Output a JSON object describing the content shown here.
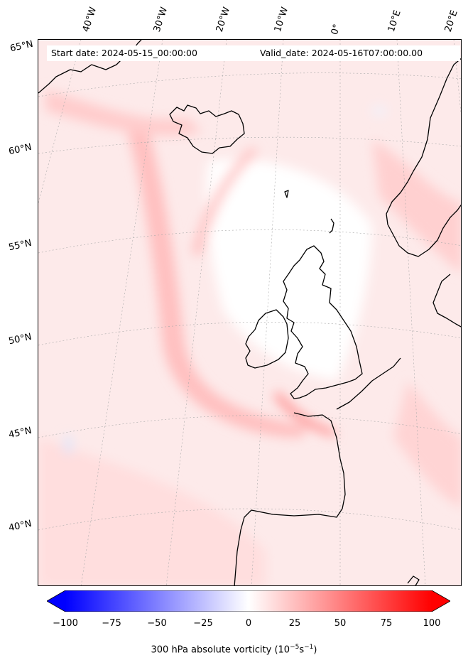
{
  "header": {
    "start_date": "Start date: 2024-05-15_00:00:00",
    "valid_date": "Valid_date: 2024-05-16T07:00:00.00"
  },
  "lon_labels": [
    "40°W",
    "30°W",
    "20°W",
    "10°W",
    "0°",
    "10°E",
    "20°E"
  ],
  "lat_labels": [
    "65°N",
    "60°N",
    "55°N",
    "50°N",
    "45°N",
    "40°N"
  ],
  "colorbar": {
    "ticks": [
      "−100",
      "−75",
      "−50",
      "−25",
      "0",
      "25",
      "50",
      "75",
      "100"
    ],
    "label": "300 hPa absolute vorticity (10",
    "label_exp": "−5",
    "label_unit": "s",
    "label_exp2": "−1",
    "label_close": ")",
    "min_color": "#0000ff",
    "mid_color": "#ffffff",
    "max_color": "#ff0000",
    "range": [
      -100,
      100
    ],
    "extend": "both"
  },
  "map": {
    "projection": "Lambert conformal",
    "domain": "North Atlantic / Western Europe",
    "coastline_color": "#000000",
    "gridline_style": "dotted grey"
  }
}
